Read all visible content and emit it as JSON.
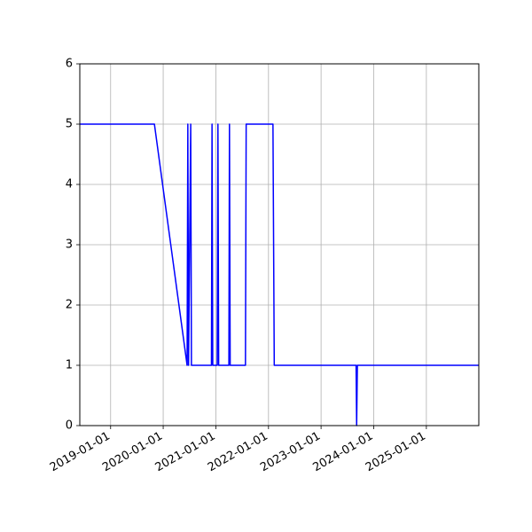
{
  "chart_data": {
    "type": "line",
    "title": "",
    "xlabel": "",
    "ylabel": "",
    "grid": true,
    "xlim": [
      "2018-06-01",
      "2025-12-31"
    ],
    "ylim": [
      0,
      6
    ],
    "x_ticks": [
      "2019-01-01",
      "2020-01-01",
      "2021-01-01",
      "2022-01-01",
      "2023-01-01",
      "2024-01-01",
      "2025-01-01"
    ],
    "y_ticks": [
      "0",
      "1",
      "2",
      "3",
      "4",
      "5",
      "6"
    ],
    "series": [
      {
        "color": "#0000ff",
        "points": [
          [
            "2018-06-01",
            5
          ],
          [
            "2019-11-01",
            5
          ],
          [
            "2020-06-15",
            1
          ],
          [
            "2020-06-20",
            5
          ],
          [
            "2020-06-25",
            1
          ],
          [
            "2020-07-10",
            5
          ],
          [
            "2020-07-15",
            1
          ],
          [
            "2020-12-01",
            1
          ],
          [
            "2020-12-05",
            5
          ],
          [
            "2020-12-10",
            1
          ],
          [
            "2021-01-10",
            1
          ],
          [
            "2021-01-15",
            5
          ],
          [
            "2021-01-20",
            1
          ],
          [
            "2021-04-01",
            1
          ],
          [
            "2021-04-05",
            5
          ],
          [
            "2021-04-10",
            1
          ],
          [
            "2021-07-25",
            1
          ],
          [
            "2021-07-30",
            5
          ],
          [
            "2022-02-01",
            5
          ],
          [
            "2022-02-10",
            1
          ],
          [
            "2023-09-01",
            1
          ],
          [
            "2023-09-05",
            0
          ],
          [
            "2023-09-10",
            1
          ],
          [
            "2025-12-31",
            1
          ]
        ]
      }
    ]
  }
}
